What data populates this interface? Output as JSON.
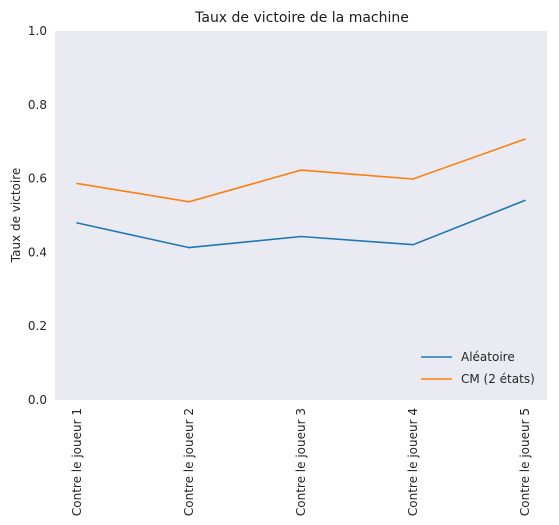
{
  "chart_data": {
    "type": "line",
    "title": "Taux de victoire de la machine",
    "xlabel": "",
    "ylabel": "Taux de victoire",
    "categories": [
      "Contre le joueur 1",
      "Contre le joueur 2",
      "Contre le joueur 3",
      "Contre le joueur 4",
      "Contre le joueur 5"
    ],
    "ylim": [
      0,
      1.0
    ],
    "yticks": [
      "0.0",
      "0.2",
      "0.4",
      "0.6",
      "0.8",
      "1.0"
    ],
    "grid": false,
    "legend_position": "lower-right",
    "background": "#eaeaf2",
    "series": [
      {
        "name": "Aléatoire",
        "color": "#1f77b4",
        "values": [
          0.48,
          0.413,
          0.443,
          0.421,
          0.541
        ]
      },
      {
        "name": "CM (2 états)",
        "color": "#ff7f0e",
        "values": [
          0.587,
          0.537,
          0.623,
          0.599,
          0.707
        ]
      }
    ]
  }
}
